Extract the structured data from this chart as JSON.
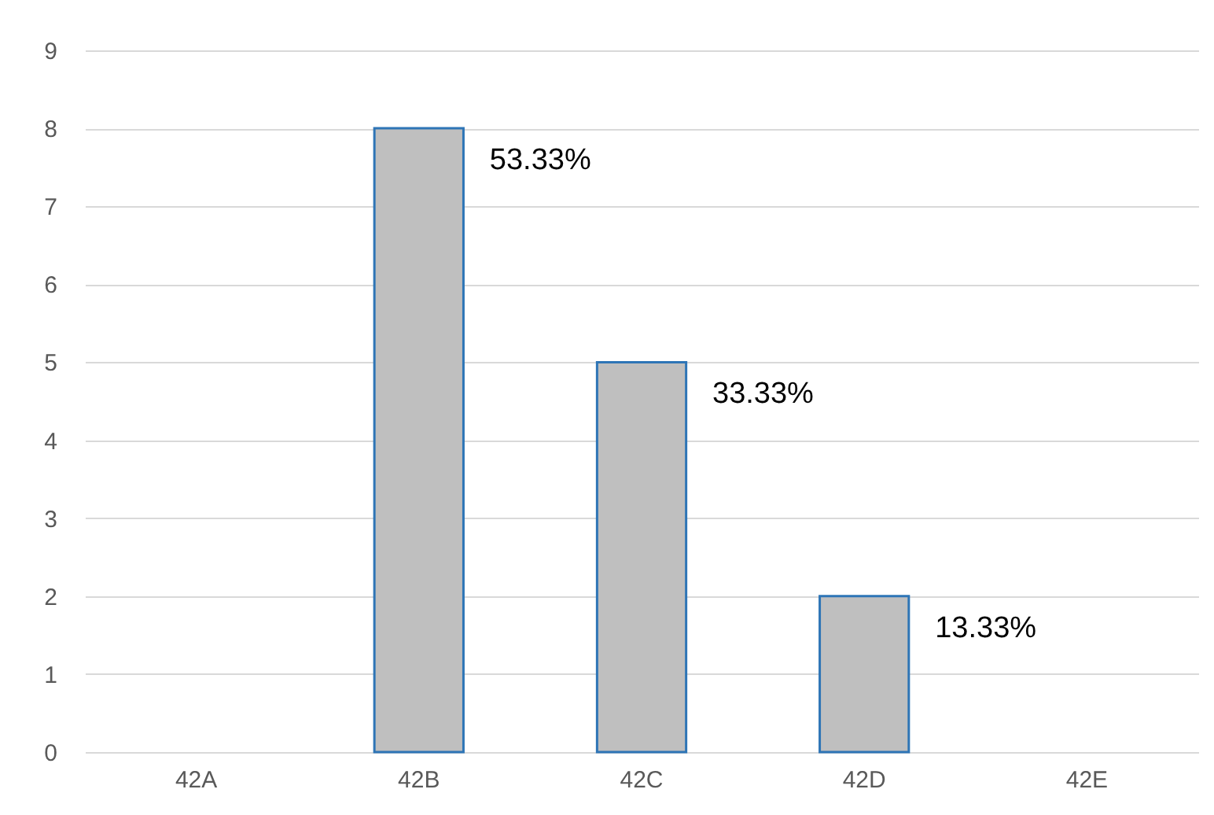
{
  "chart_data": {
    "type": "bar",
    "categories": [
      "42A",
      "42B",
      "42C",
      "42D",
      "42E"
    ],
    "values": [
      0,
      8,
      5,
      2,
      0
    ],
    "annotations": [
      {
        "text": "53.33%",
        "x": "42B",
        "y": 8
      },
      {
        "text": "33.33%",
        "x": "42C",
        "y": 5
      },
      {
        "text": "13.33%",
        "x": "42D",
        "y": 2
      }
    ],
    "color": "#bfbfbf",
    "ylim": [
      0,
      9
    ],
    "yticks": [
      0,
      1,
      2,
      3,
      4,
      5,
      6,
      7,
      8,
      9
    ],
    "grid": "y"
  }
}
